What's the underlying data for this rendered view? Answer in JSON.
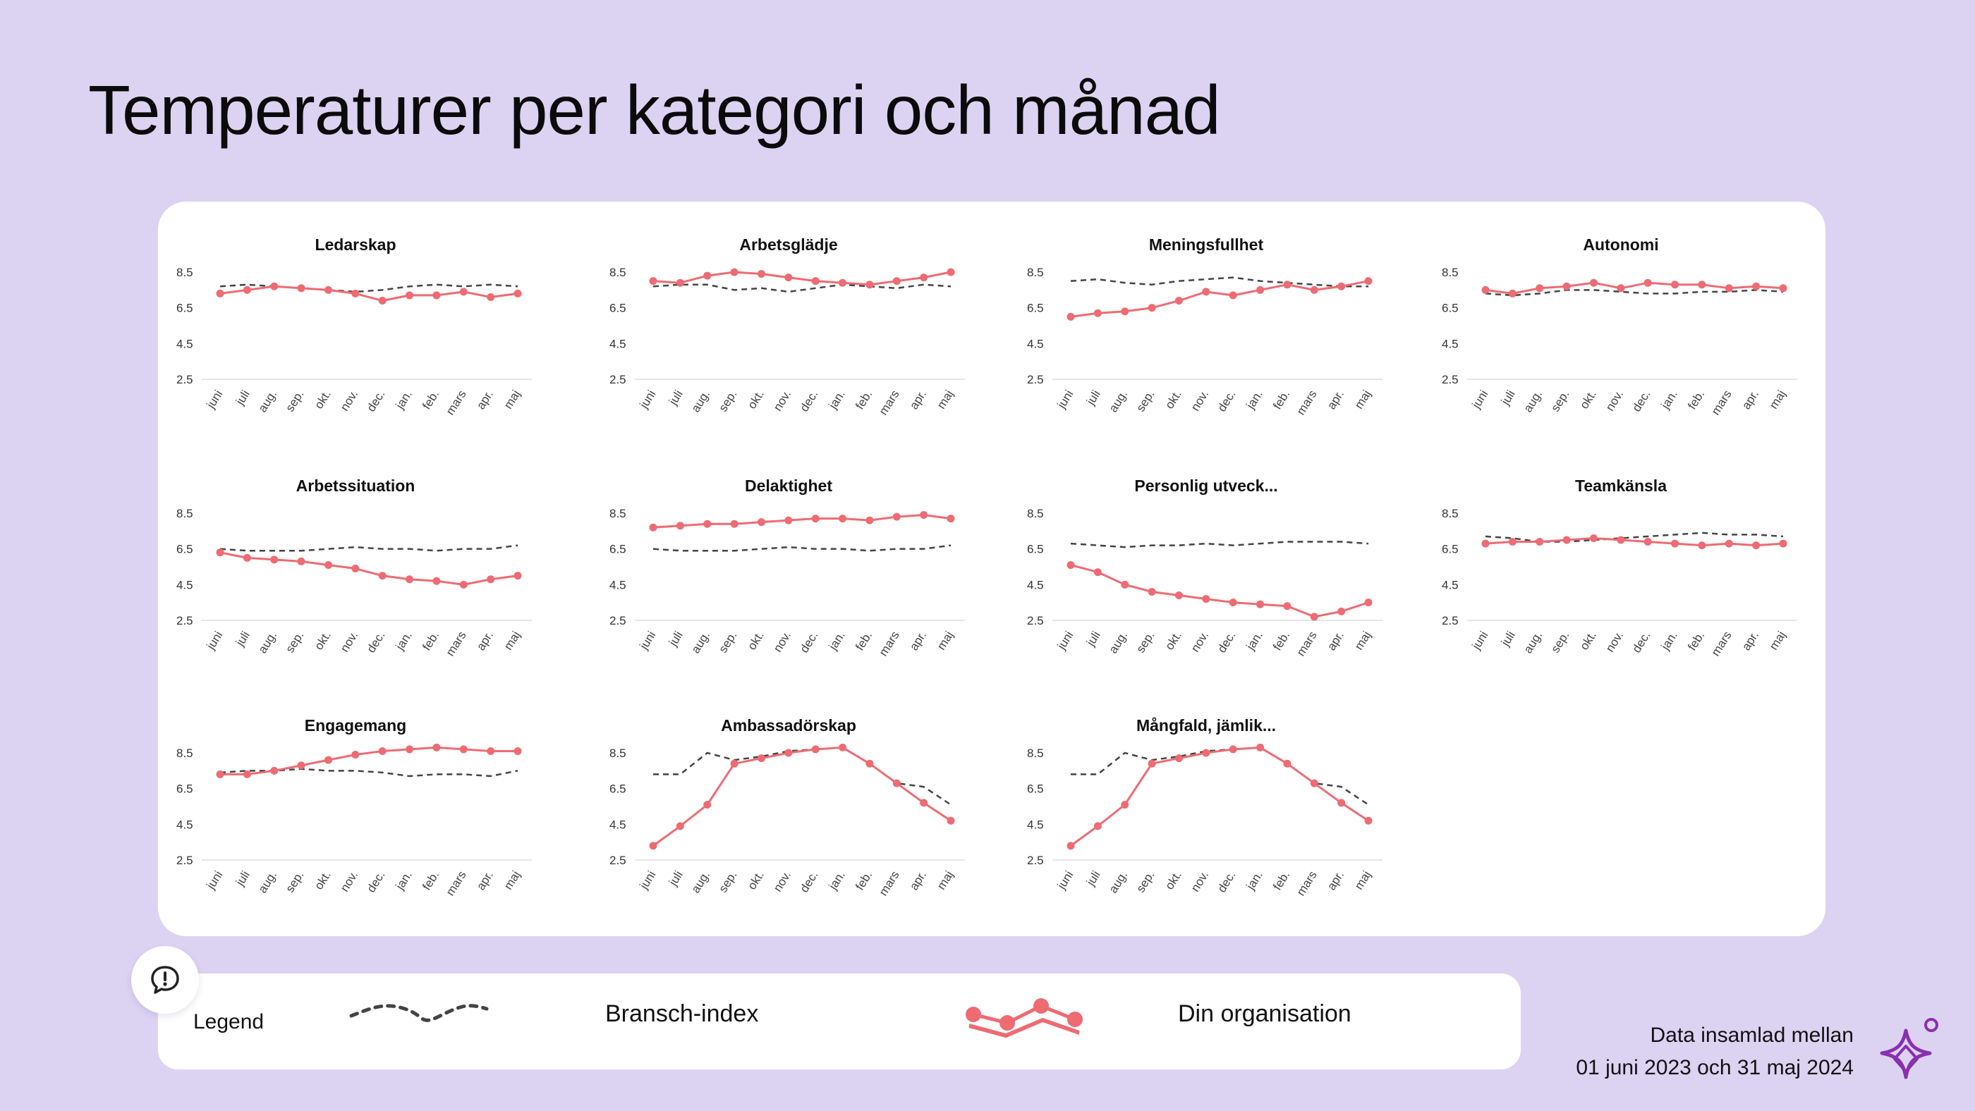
{
  "page": {
    "title": "Temperaturer per kategori och månad",
    "footer_line1": "Data insamlad mellan",
    "footer_line2": "01 juni 2023 och 31 maj 2024"
  },
  "legend": {
    "title": "Legend",
    "industry_label": "Bransch-index",
    "org_label": "Din organisation",
    "icon": "speech-bubble-exclamation-icon"
  },
  "colors": {
    "background": "#dcd3f3",
    "org_line": "#ee6b73",
    "industry_line": "#444444",
    "brand": "#8a2fb0"
  },
  "chart_data": [
    {
      "type": "line",
      "title": "Ledarskap",
      "categories": [
        "juni",
        "juli",
        "aug.",
        "sep.",
        "okt.",
        "nov.",
        "dec.",
        "jan.",
        "feb.",
        "mars",
        "apr.",
        "maj"
      ],
      "yticks": [
        "8.5",
        "6.5",
        "4.5",
        "2.5"
      ],
      "ylim": [
        2.5,
        8.5
      ],
      "series": [
        {
          "name": "Bransch-index",
          "values": [
            7.7,
            7.8,
            7.7,
            7.6,
            7.5,
            7.4,
            7.5,
            7.7,
            7.8,
            7.7,
            7.8,
            7.7
          ]
        },
        {
          "name": "Din organisation",
          "values": [
            7.3,
            7.5,
            7.7,
            7.6,
            7.5,
            7.3,
            6.9,
            7.2,
            7.2,
            7.4,
            7.1,
            7.3
          ]
        }
      ]
    },
    {
      "type": "line",
      "title": "Arbetsglädje",
      "categories": [
        "juni",
        "juli",
        "aug.",
        "sep.",
        "okt.",
        "nov.",
        "dec.",
        "jan.",
        "feb.",
        "mars",
        "apr.",
        "maj"
      ],
      "yticks": [
        "8.5",
        "6.5",
        "4.5",
        "2.5"
      ],
      "ylim": [
        2.5,
        8.5
      ],
      "series": [
        {
          "name": "Bransch-index",
          "values": [
            7.7,
            7.8,
            7.8,
            7.5,
            7.6,
            7.4,
            7.6,
            7.8,
            7.7,
            7.6,
            7.8,
            7.7
          ]
        },
        {
          "name": "Din organisation",
          "values": [
            8.0,
            7.9,
            8.3,
            8.5,
            8.4,
            8.2,
            8.0,
            7.9,
            7.8,
            8.0,
            8.2,
            8.5
          ]
        }
      ]
    },
    {
      "type": "line",
      "title": "Meningsfullhet",
      "categories": [
        "juni",
        "juli",
        "aug.",
        "sep.",
        "okt.",
        "nov.",
        "dec.",
        "jan.",
        "feb.",
        "mars",
        "apr.",
        "maj"
      ],
      "yticks": [
        "8.5",
        "6.5",
        "4.5",
        "2.5"
      ],
      "ylim": [
        2.5,
        8.5
      ],
      "series": [
        {
          "name": "Bransch-index",
          "values": [
            8.0,
            8.1,
            7.9,
            7.8,
            8.0,
            8.1,
            8.2,
            8.0,
            7.9,
            7.8,
            7.7,
            7.7
          ]
        },
        {
          "name": "Din organisation",
          "values": [
            6.0,
            6.2,
            6.3,
            6.5,
            6.9,
            7.4,
            7.2,
            7.5,
            7.8,
            7.5,
            7.7,
            8.0
          ]
        }
      ]
    },
    {
      "type": "line",
      "title": "Autonomi",
      "categories": [
        "juni",
        "juli",
        "aug.",
        "sep.",
        "okt.",
        "nov.",
        "dec.",
        "jan.",
        "feb.",
        "mars",
        "apr.",
        "maj"
      ],
      "yticks": [
        "8.5",
        "6.5",
        "4.5",
        "2.5"
      ],
      "ylim": [
        2.5,
        8.5
      ],
      "series": [
        {
          "name": "Bransch-index",
          "values": [
            7.3,
            7.2,
            7.3,
            7.5,
            7.5,
            7.4,
            7.3,
            7.3,
            7.4,
            7.4,
            7.5,
            7.4
          ]
        },
        {
          "name": "Din organisation",
          "values": [
            7.5,
            7.3,
            7.6,
            7.7,
            7.9,
            7.6,
            7.9,
            7.8,
            7.8,
            7.6,
            7.7,
            7.6
          ]
        }
      ]
    },
    {
      "type": "line",
      "title": "Arbetssituation",
      "categories": [
        "juni",
        "juli",
        "aug.",
        "sep.",
        "okt.",
        "nov.",
        "dec.",
        "jan.",
        "feb.",
        "mars",
        "apr.",
        "maj"
      ],
      "yticks": [
        "8.5",
        "6.5",
        "4.5",
        "2.5"
      ],
      "ylim": [
        2.5,
        8.5
      ],
      "series": [
        {
          "name": "Bransch-index",
          "values": [
            6.5,
            6.4,
            6.4,
            6.4,
            6.5,
            6.6,
            6.5,
            6.5,
            6.4,
            6.5,
            6.5,
            6.7
          ]
        },
        {
          "name": "Din organisation",
          "values": [
            6.3,
            6.0,
            5.9,
            5.8,
            5.6,
            5.4,
            5.0,
            4.8,
            4.7,
            4.5,
            4.8,
            5.0
          ]
        }
      ]
    },
    {
      "type": "line",
      "title": "Delaktighet",
      "categories": [
        "juni",
        "juli",
        "aug.",
        "sep.",
        "okt.",
        "nov.",
        "dec.",
        "jan.",
        "feb.",
        "mars",
        "apr.",
        "maj"
      ],
      "yticks": [
        "8.5",
        "6.5",
        "4.5",
        "2.5"
      ],
      "ylim": [
        2.5,
        8.5
      ],
      "series": [
        {
          "name": "Bransch-index",
          "values": [
            6.5,
            6.4,
            6.4,
            6.4,
            6.5,
            6.6,
            6.5,
            6.5,
            6.4,
            6.5,
            6.5,
            6.7
          ]
        },
        {
          "name": "Din organisation",
          "values": [
            7.7,
            7.8,
            7.9,
            7.9,
            8.0,
            8.1,
            8.2,
            8.2,
            8.1,
            8.3,
            8.4,
            8.2
          ]
        }
      ]
    },
    {
      "type": "line",
      "title": "Personlig utveck...",
      "categories": [
        "juni",
        "juli",
        "aug.",
        "sep.",
        "okt.",
        "nov.",
        "dec.",
        "jan.",
        "feb.",
        "mars",
        "apr.",
        "maj"
      ],
      "yticks": [
        "8.5",
        "6.5",
        "4.5",
        "2.5"
      ],
      "ylim": [
        2.5,
        8.5
      ],
      "series": [
        {
          "name": "Bransch-index",
          "values": [
            6.8,
            6.7,
            6.6,
            6.7,
            6.7,
            6.8,
            6.7,
            6.8,
            6.9,
            6.9,
            6.9,
            6.8
          ]
        },
        {
          "name": "Din organisation",
          "values": [
            5.6,
            5.2,
            4.5,
            4.1,
            3.9,
            3.7,
            3.5,
            3.4,
            3.3,
            2.7,
            3.0,
            3.5
          ]
        }
      ]
    },
    {
      "type": "line",
      "title": "Teamkänsla",
      "categories": [
        "juni",
        "juli",
        "aug.",
        "sep.",
        "okt.",
        "nov.",
        "dec.",
        "jan.",
        "feb.",
        "mars",
        "apr.",
        "maj"
      ],
      "yticks": [
        "8.5",
        "6.5",
        "4.5",
        "2.5"
      ],
      "ylim": [
        2.5,
        8.5
      ],
      "series": [
        {
          "name": "Bransch-index",
          "values": [
            7.2,
            7.1,
            6.9,
            6.9,
            7.0,
            7.1,
            7.2,
            7.3,
            7.4,
            7.3,
            7.3,
            7.2
          ]
        },
        {
          "name": "Din organisation",
          "values": [
            6.8,
            6.9,
            6.9,
            7.0,
            7.1,
            7.0,
            6.9,
            6.8,
            6.7,
            6.8,
            6.7,
            6.8
          ]
        }
      ]
    },
    {
      "type": "line",
      "title": "Engagemang",
      "categories": [
        "juni",
        "juli",
        "aug.",
        "sep.",
        "okt.",
        "nov.",
        "dec.",
        "jan.",
        "feb.",
        "mars",
        "apr.",
        "maj"
      ],
      "yticks": [
        "8.5",
        "6.5",
        "4.5",
        "2.5"
      ],
      "ylim": [
        2.5,
        8.5
      ],
      "series": [
        {
          "name": "Bransch-index",
          "values": [
            7.4,
            7.5,
            7.5,
            7.6,
            7.5,
            7.5,
            7.4,
            7.2,
            7.3,
            7.3,
            7.2,
            7.5
          ]
        },
        {
          "name": "Din organisation",
          "values": [
            7.3,
            7.3,
            7.5,
            7.8,
            8.1,
            8.4,
            8.6,
            8.7,
            8.8,
            8.7,
            8.6,
            8.6
          ]
        }
      ]
    },
    {
      "type": "line",
      "title": "Ambassadörskap",
      "categories": [
        "juni",
        "juli",
        "aug.",
        "sep.",
        "okt.",
        "nov.",
        "dec.",
        "jan.",
        "feb.",
        "mars",
        "apr.",
        "maj"
      ],
      "yticks": [
        "8.5",
        "6.5",
        "4.5",
        "2.5"
      ],
      "ylim": [
        2.5,
        8.5
      ],
      "series": [
        {
          "name": "Bransch-index",
          "values": [
            7.3,
            7.3,
            8.5,
            8.1,
            8.3,
            8.6,
            8.7,
            8.8,
            7.9,
            6.8,
            6.6,
            5.6
          ]
        },
        {
          "name": "Din organisation",
          "values": [
            3.3,
            4.4,
            5.6,
            7.9,
            8.2,
            8.5,
            8.7,
            8.8,
            7.9,
            6.8,
            5.7,
            4.7
          ]
        }
      ]
    },
    {
      "type": "line",
      "title": "Mångfald, jämlik...",
      "categories": [
        "juni",
        "juli",
        "aug.",
        "sep.",
        "okt.",
        "nov.",
        "dec.",
        "jan.",
        "feb.",
        "mars",
        "apr.",
        "maj"
      ],
      "yticks": [
        "8.5",
        "6.5",
        "4.5",
        "2.5"
      ],
      "ylim": [
        2.5,
        8.5
      ],
      "series": [
        {
          "name": "Bransch-index",
          "values": [
            7.3,
            7.3,
            8.5,
            8.1,
            8.3,
            8.6,
            8.7,
            8.8,
            7.9,
            6.8,
            6.6,
            5.6
          ]
        },
        {
          "name": "Din organisation",
          "values": [
            3.3,
            4.4,
            5.6,
            7.9,
            8.2,
            8.5,
            8.7,
            8.8,
            7.9,
            6.8,
            5.7,
            4.7
          ]
        }
      ]
    }
  ]
}
